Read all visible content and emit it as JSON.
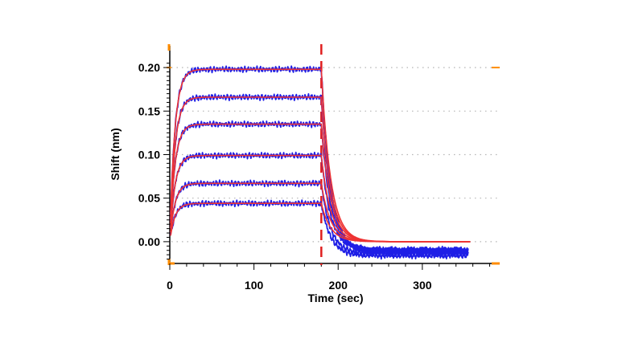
{
  "chart_data": {
    "type": "line",
    "xlabel": "Time (sec)",
    "ylabel": "Shift (nm)",
    "xlim": [
      0,
      390
    ],
    "ylim": [
      -0.025,
      0.225
    ],
    "x_ticks": [
      0,
      100,
      200,
      300
    ],
    "x_tick_labels": [
      "0",
      "100",
      "200",
      "300"
    ],
    "y_ticks": [
      0.0,
      0.05,
      0.1,
      0.15,
      0.2
    ],
    "y_tick_labels": [
      "0.00",
      "0.05",
      "0.10",
      "0.15",
      "0.20"
    ],
    "grid": "horizontal dotted",
    "association_end_time": 180,
    "end_time": 355,
    "colors": {
      "measured": "#1f1fe6",
      "fitted": "#ee3333",
      "marker_line": "#e02020",
      "axis_corner": "#ff8c00",
      "grid": "#b4b4b4"
    },
    "series": [
      {
        "plateau": 0.198,
        "dissociation_tail": -0.012
      },
      {
        "plateau": 0.166,
        "dissociation_tail": -0.011
      },
      {
        "plateau": 0.135,
        "dissociation_tail": -0.01
      },
      {
        "plateau": 0.099,
        "dissociation_tail": -0.009
      },
      {
        "plateau": 0.067,
        "dissociation_tail": -0.014
      },
      {
        "plateau": 0.044,
        "dissociation_tail": -0.016
      }
    ]
  }
}
